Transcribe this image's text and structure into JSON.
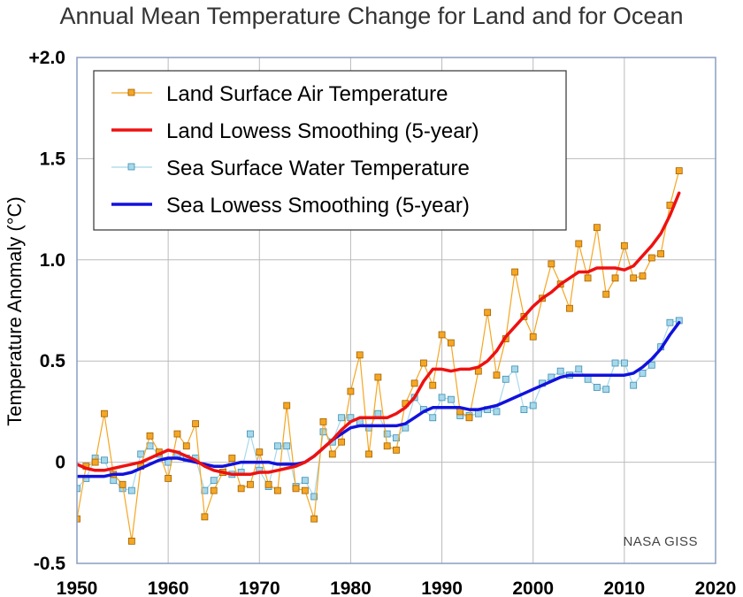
{
  "chart_data": {
    "type": "line",
    "title": "Annual Mean Temperature Change for Land and for Ocean",
    "xlabel": "",
    "ylabel": "Temperature Anomaly (°C)",
    "xlim": [
      1950,
      2020
    ],
    "ylim": [
      -0.5,
      2.0
    ],
    "x_ticks": [
      1950,
      1960,
      1970,
      1980,
      1990,
      2000,
      2010,
      2020
    ],
    "y_ticks": [
      {
        "value": -0.5,
        "label": "-0.5"
      },
      {
        "value": 0,
        "label": "0"
      },
      {
        "value": 0.5,
        "label": "0.5"
      },
      {
        "value": 1.0,
        "label": "1.0"
      },
      {
        "value": 1.5,
        "label": "1.5"
      },
      {
        "value": 2.0,
        "label": "+2.0"
      }
    ],
    "grid": true,
    "legend_position": "top-left",
    "credit": "NASA GISS",
    "colors": {
      "land_annual": "#f5a623",
      "land_marker": "#e8961e",
      "land_smooth": "#ee1111",
      "sea_annual": "#a8d8ea",
      "sea_marker": "#7ec3e0",
      "sea_smooth": "#1111dd",
      "grid": "#bbbbbb",
      "frame": "#8a9dc4"
    },
    "x": [
      1950,
      1951,
      1952,
      1953,
      1954,
      1955,
      1956,
      1957,
      1958,
      1959,
      1960,
      1961,
      1962,
      1963,
      1964,
      1965,
      1966,
      1967,
      1968,
      1969,
      1970,
      1971,
      1972,
      1973,
      1974,
      1975,
      1976,
      1977,
      1978,
      1979,
      1980,
      1981,
      1982,
      1983,
      1984,
      1985,
      1986,
      1987,
      1988,
      1989,
      1990,
      1991,
      1992,
      1993,
      1994,
      1995,
      1996,
      1997,
      1998,
      1999,
      2000,
      2001,
      2002,
      2003,
      2004,
      2005,
      2006,
      2007,
      2008,
      2009,
      2010,
      2011,
      2012,
      2013,
      2014,
      2015,
      2016
    ],
    "series": [
      {
        "name": "Land Surface Air Temperature",
        "style": "annual-land",
        "values": [
          -0.28,
          -0.02,
          0.0,
          0.24,
          -0.06,
          -0.11,
          -0.39,
          -0.02,
          0.13,
          0.05,
          -0.08,
          0.14,
          0.08,
          0.19,
          -0.27,
          -0.14,
          -0.05,
          0.02,
          -0.13,
          -0.11,
          0.05,
          -0.11,
          -0.14,
          0.28,
          -0.13,
          -0.14,
          -0.28,
          0.2,
          0.04,
          0.1,
          0.35,
          0.53,
          0.04,
          0.42,
          0.08,
          0.06,
          0.29,
          0.39,
          0.49,
          0.38,
          0.63,
          0.59,
          0.25,
          0.22,
          0.45,
          0.74,
          0.43,
          0.61,
          0.94,
          0.72,
          0.62,
          0.81,
          0.98,
          0.88,
          0.76,
          1.08,
          0.91,
          1.16,
          0.83,
          0.91,
          1.07,
          0.91,
          0.92,
          1.01,
          1.03,
          1.27,
          1.44
        ]
      },
      {
        "name": "Land Lowess Smoothing (5-year)",
        "style": "smooth-land",
        "values": [
          -0.01,
          -0.03,
          -0.04,
          -0.04,
          -0.03,
          -0.02,
          -0.01,
          0.0,
          0.02,
          0.04,
          0.06,
          0.05,
          0.03,
          0.01,
          -0.02,
          -0.04,
          -0.05,
          -0.06,
          -0.06,
          -0.06,
          -0.05,
          -0.05,
          -0.04,
          -0.03,
          -0.02,
          0.0,
          0.03,
          0.07,
          0.11,
          0.16,
          0.2,
          0.22,
          0.22,
          0.22,
          0.22,
          0.24,
          0.27,
          0.32,
          0.4,
          0.46,
          0.46,
          0.45,
          0.46,
          0.46,
          0.47,
          0.5,
          0.55,
          0.62,
          0.67,
          0.72,
          0.77,
          0.81,
          0.84,
          0.88,
          0.91,
          0.94,
          0.94,
          0.96,
          0.96,
          0.96,
          0.95,
          0.97,
          1.02,
          1.07,
          1.13,
          1.22,
          1.33
        ]
      },
      {
        "name": "Sea Surface Water Temperature",
        "style": "annual-sea",
        "values": [
          -0.13,
          -0.08,
          0.02,
          0.01,
          -0.09,
          -0.13,
          -0.14,
          0.04,
          0.08,
          0.04,
          0.0,
          0.04,
          0.02,
          0.02,
          -0.14,
          -0.09,
          -0.05,
          -0.06,
          -0.05,
          0.14,
          -0.04,
          -0.12,
          0.08,
          0.08,
          -0.12,
          -0.09,
          -0.17,
          0.15,
          0.1,
          0.22,
          0.22,
          0.2,
          0.17,
          0.24,
          0.14,
          0.12,
          0.17,
          0.32,
          0.26,
          0.22,
          0.32,
          0.31,
          0.23,
          0.23,
          0.24,
          0.26,
          0.25,
          0.41,
          0.46,
          0.26,
          0.28,
          0.39,
          0.42,
          0.45,
          0.43,
          0.46,
          0.41,
          0.37,
          0.36,
          0.49,
          0.49,
          0.38,
          0.44,
          0.48,
          0.57,
          0.69,
          0.7
        ]
      },
      {
        "name": "Sea Lowess Smoothing (5-year)",
        "style": "smooth-sea",
        "values": [
          -0.07,
          -0.07,
          -0.07,
          -0.07,
          -0.06,
          -0.06,
          -0.05,
          -0.03,
          -0.01,
          0.01,
          0.02,
          0.02,
          0.01,
          0.0,
          -0.01,
          -0.02,
          -0.02,
          -0.01,
          0.0,
          0.0,
          0.0,
          0.0,
          -0.01,
          -0.01,
          -0.01,
          0.0,
          0.03,
          0.07,
          0.11,
          0.14,
          0.17,
          0.18,
          0.18,
          0.18,
          0.18,
          0.18,
          0.19,
          0.22,
          0.25,
          0.27,
          0.27,
          0.27,
          0.27,
          0.26,
          0.26,
          0.27,
          0.28,
          0.3,
          0.32,
          0.34,
          0.36,
          0.38,
          0.4,
          0.42,
          0.43,
          0.43,
          0.43,
          0.43,
          0.43,
          0.43,
          0.43,
          0.44,
          0.47,
          0.51,
          0.56,
          0.63,
          0.69
        ]
      }
    ]
  }
}
